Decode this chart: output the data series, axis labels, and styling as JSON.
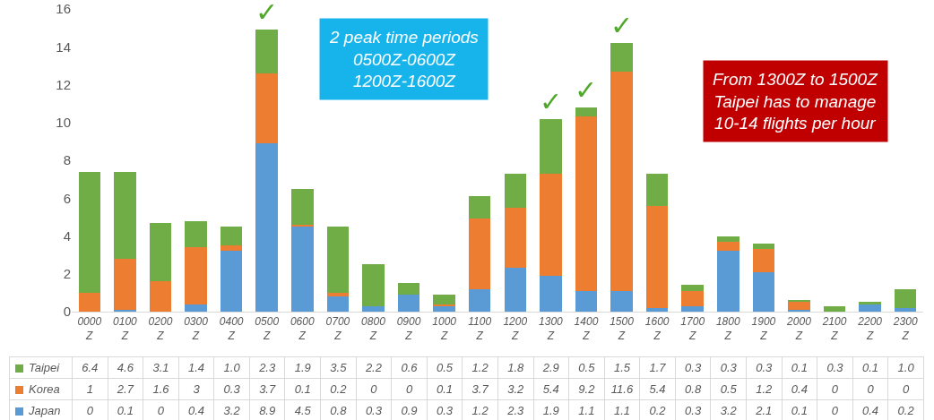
{
  "chart_data": {
    "type": "bar",
    "stacked": true,
    "categories": [
      "0000 Z",
      "0100 Z",
      "0200 Z",
      "0300 Z",
      "0400 Z",
      "0500 Z",
      "0600 Z",
      "0700 Z",
      "0800 Z",
      "0900 Z",
      "1000 Z",
      "1100 Z",
      "1200 Z",
      "1300 Z",
      "1400 Z",
      "1500 Z",
      "1600 Z",
      "1700 Z",
      "1800 Z",
      "1900 Z",
      "2000 Z",
      "2100 Z",
      "2200 Z",
      "2300 Z"
    ],
    "series": [
      {
        "name": "Japan",
        "color": "#5b9bd5",
        "values": [
          0,
          0.1,
          0,
          0.4,
          3.2,
          8.9,
          4.5,
          0.8,
          0.3,
          0.9,
          0.3,
          1.2,
          2.3,
          1.9,
          1.1,
          1.1,
          0.2,
          0.3,
          3.2,
          2.1,
          0.1,
          0,
          0.4,
          0.2
        ],
        "value_labels": [
          "0",
          "0.1",
          "0",
          "0.4",
          "3.2",
          "8.9",
          "4.5",
          "0.8",
          "0.3",
          "0.9",
          "0.3",
          "1.2",
          "2.3",
          "1.9",
          "1.1",
          "1.1",
          "0.2",
          "0.3",
          "3.2",
          "2.1",
          "0.1",
          "0",
          "0.4",
          "0.2"
        ]
      },
      {
        "name": "Korea",
        "color": "#ed7d31",
        "values": [
          1,
          2.7,
          1.6,
          3,
          0.3,
          3.7,
          0.1,
          0.2,
          0,
          0,
          0.1,
          3.7,
          3.2,
          5.4,
          9.2,
          11.6,
          5.4,
          0.8,
          0.5,
          1.2,
          0.4,
          0,
          0,
          0
        ],
        "value_labels": [
          "1",
          "2.7",
          "1.6",
          "3",
          "0.3",
          "3.7",
          "0.1",
          "0.2",
          "0",
          "0",
          "0.1",
          "3.7",
          "3.2",
          "5.4",
          "9.2",
          "11.6",
          "5.4",
          "0.8",
          "0.5",
          "1.2",
          "0.4",
          "0",
          "0",
          "0"
        ]
      },
      {
        "name": "Taipei",
        "color": "#70ad47",
        "values": [
          6.4,
          4.6,
          3.1,
          1.4,
          1.0,
          2.3,
          1.9,
          3.5,
          2.2,
          0.6,
          0.5,
          1.2,
          1.8,
          2.9,
          0.5,
          1.5,
          1.7,
          0.3,
          0.3,
          0.3,
          0.1,
          0.3,
          0.1,
          1.0
        ],
        "value_labels": [
          "6.4",
          "4.6",
          "3.1",
          "1.4",
          "1.0",
          "2.3",
          "1.9",
          "3.5",
          "2.2",
          "0.6",
          "0.5",
          "1.2",
          "1.8",
          "2.9",
          "0.5",
          "1.5",
          "1.7",
          "0.3",
          "0.3",
          "0.3",
          "0.1",
          "0.3",
          "0.1",
          "1.0"
        ]
      }
    ],
    "legend": "bottom left",
    "ylim": [
      0,
      16
    ],
    "yticks": [
      0,
      2,
      4,
      6,
      8,
      10,
      12,
      14,
      16
    ],
    "annotations": [
      "2 peak time periods\n0500Z-0600Z\n1200Z-1600Z",
      "From 1300Z to 1500Z\nTaipei has to manage\n10-14 flights per hour",
      {
        "text": "✓",
        "x": "0500 Z",
        "y": 14.9
      },
      {
        "text": "✓",
        "x": "1300 Z",
        "y": 10.2
      },
      {
        "text": "✓",
        "x": "1400 Z",
        "y": 10.8
      },
      {
        "text": "✓",
        "x": "1500 Z",
        "y": 14.2
      }
    ]
  }
}
